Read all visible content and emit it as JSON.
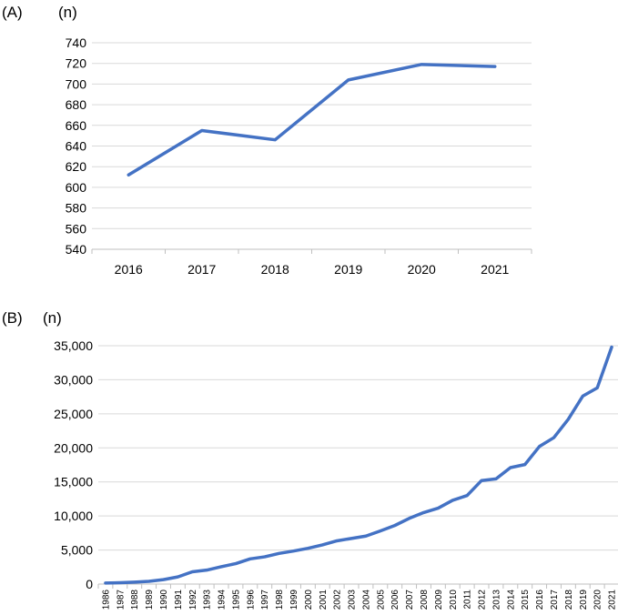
{
  "panels": [
    {
      "label": "(A)",
      "unit": "(n)"
    },
    {
      "label": "(B)",
      "unit": "(n)"
    }
  ],
  "chart_data": [
    {
      "type": "line",
      "title": "",
      "xlabel": "",
      "ylabel": "(n)",
      "categories": [
        "2016",
        "2017",
        "2018",
        "2019",
        "2020",
        "2021"
      ],
      "values": [
        612,
        655,
        646,
        704,
        719,
        717
      ],
      "ylim": [
        540,
        740
      ],
      "yticks": [
        540,
        560,
        580,
        600,
        620,
        640,
        660,
        680,
        700,
        720,
        740
      ],
      "ytick_labels": [
        "540",
        "560",
        "580",
        "600",
        "620",
        "640",
        "660",
        "680",
        "700",
        "720",
        "740"
      ],
      "grid": true,
      "color": "#4472c4"
    },
    {
      "type": "line",
      "title": "",
      "xlabel": "",
      "ylabel": "(n)",
      "categories": [
        "1986",
        "1987",
        "1988",
        "1989",
        "1990",
        "1991",
        "1992",
        "1993",
        "1994",
        "1995",
        "1996",
        "1997",
        "1998",
        "1999",
        "2000",
        "2001",
        "2002",
        "2003",
        "2004",
        "2005",
        "2006",
        "2007",
        "2008",
        "2009",
        "2010",
        "2011",
        "2012",
        "2013",
        "2014",
        "2015",
        "2016",
        "2017",
        "2018",
        "2019",
        "2020",
        "2021"
      ],
      "values": [
        150,
        200,
        280,
        400,
        650,
        1050,
        1800,
        2050,
        2550,
        3000,
        3700,
        4000,
        4500,
        4850,
        5250,
        5750,
        6350,
        6700,
        7050,
        7800,
        8600,
        9650,
        10500,
        11150,
        12300,
        13000,
        15200,
        15450,
        17100,
        17550,
        20200,
        21500,
        24200,
        27600,
        28800,
        34800
      ],
      "ylim": [
        0,
        35000
      ],
      "yticks": [
        0,
        5000,
        10000,
        15000,
        20000,
        25000,
        30000,
        35000
      ],
      "ytick_labels": [
        "0",
        "5,000",
        "10,000",
        "15,000",
        "20,000",
        "25,000",
        "30,000",
        "35,000"
      ],
      "grid": true,
      "color": "#4472c4"
    }
  ]
}
